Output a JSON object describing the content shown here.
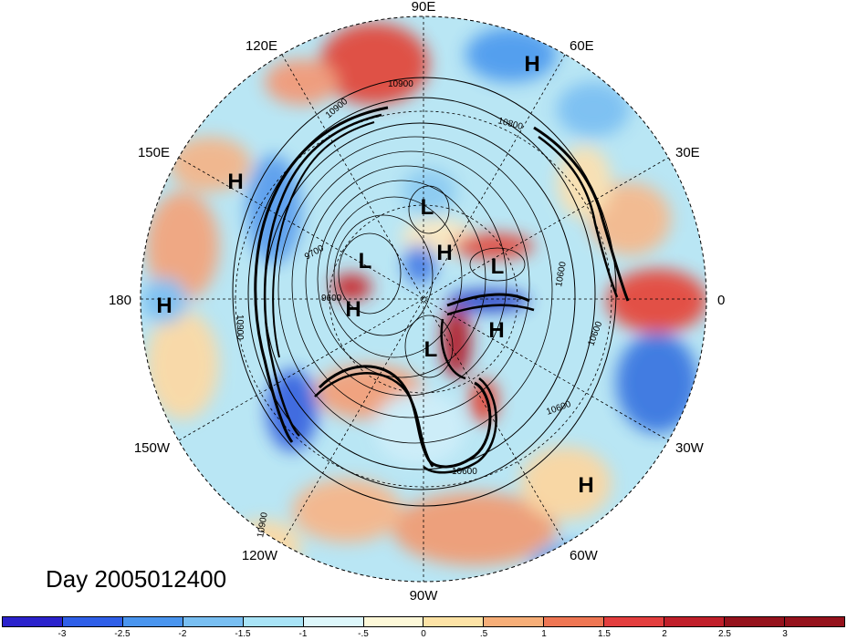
{
  "title": "Day 2005012400",
  "longitude_labels": {
    "90E": "90E",
    "60E": "60E",
    "30E": "30E",
    "0": "0",
    "30W": "30W",
    "60W": "60W",
    "90W": "90W",
    "120W": "120W",
    "150W": "150W",
    "180": "180",
    "150E": "150E",
    "120E": "120E"
  },
  "pressure_centers": [
    {
      "label": "H"
    },
    {
      "label": "H"
    },
    {
      "label": "H"
    },
    {
      "label": "H"
    },
    {
      "label": "H"
    },
    {
      "label": "H"
    },
    {
      "label": "H"
    },
    {
      "label": "L"
    },
    {
      "label": "L"
    },
    {
      "label": "L"
    },
    {
      "label": "L"
    }
  ],
  "contour_labels": [
    "10900",
    "10900",
    "10800",
    "10600",
    "9700",
    "9600",
    "10900",
    "10600",
    "10600",
    "10600",
    "10900"
  ],
  "colorbar": {
    "colors": [
      "#2b22cc",
      "#2f5fe8",
      "#4a95ee",
      "#79bff2",
      "#a9e4f7",
      "#ddf7fb",
      "#fdf8d8",
      "#fde3a6",
      "#f6ae78",
      "#ee7653",
      "#e33e3e",
      "#c01f2a",
      "#95121c"
    ],
    "ticks": [
      "-3",
      "-2.5",
      "-2",
      "-1.5",
      "-1",
      "-.5",
      "0",
      ".5",
      "1",
      "1.5",
      "2",
      "2.5",
      "3"
    ]
  },
  "colors": {
    "contour": "#000000",
    "grid": "#000000",
    "background": "#ffffff"
  }
}
